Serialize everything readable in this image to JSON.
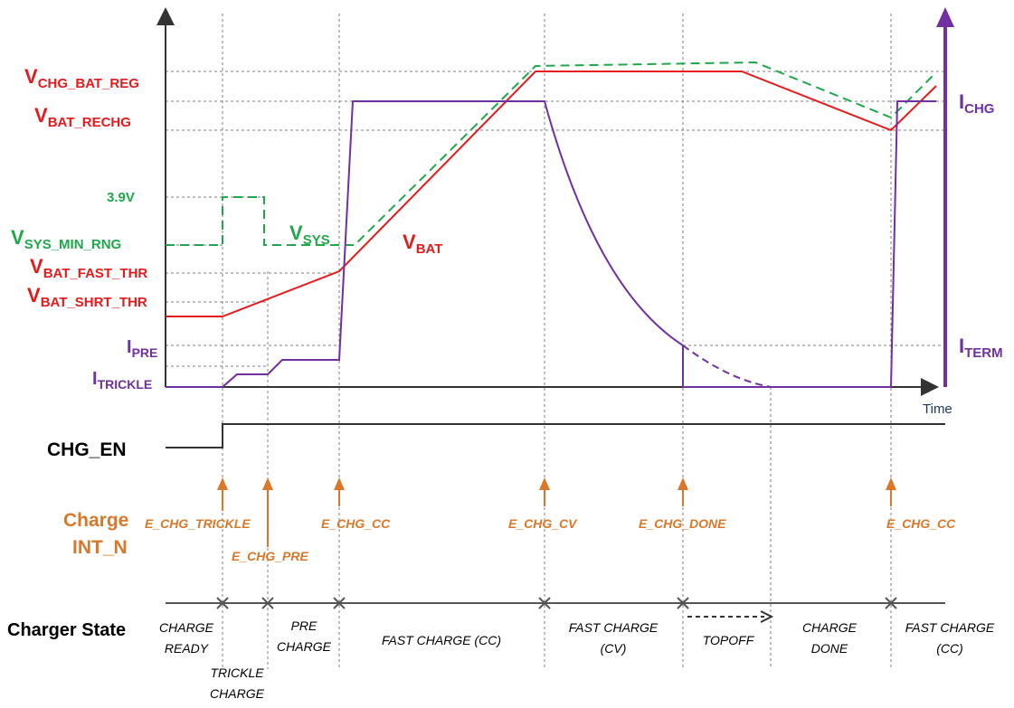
{
  "colors": {
    "vbat": "#e41a1c",
    "vsys": "#1fa84a",
    "ichg": "#7030a0",
    "event": "#d9782a",
    "axis": "#333333",
    "guide": "#7f7f7f"
  },
  "axis": {
    "time_label": "Time"
  },
  "left_labels": {
    "vchg_bat_reg": {
      "main": "V",
      "sub": "CHG_BAT_REG"
    },
    "vbat_rechg": {
      "main": "V",
      "sub": "BAT_RECHG"
    },
    "v39": "3.9V",
    "vsys_min_rng": {
      "main": "V",
      "sub": "SYS_MIN_RNG"
    },
    "vbat_fast_thr": {
      "main": "V",
      "sub": "BAT_FAST_THR"
    },
    "vbat_shrt_thr": {
      "main": "V",
      "sub": "BAT_SHRT_THR"
    },
    "ipre": {
      "main": "I",
      "sub": "PRE"
    },
    "itrickle": {
      "main": "I",
      "sub": "TRICKLE"
    }
  },
  "curve_labels": {
    "vsys": {
      "main": "V",
      "sub": "SYS"
    },
    "vbat": {
      "main": "V",
      "sub": "BAT"
    }
  },
  "right_labels": {
    "ichg": {
      "main": "I",
      "sub": "CHG"
    },
    "iterm": {
      "main": "I",
      "sub": "TERM"
    }
  },
  "signals": {
    "chg_en": "CHG_EN",
    "charge_int_line1": "Charge",
    "charge_int_line2": "INT_N"
  },
  "events": [
    "E_CHG_TRICKLE",
    "E_CHG_PRE",
    "E_CHG_CC",
    "E_CHG_CV",
    "E_CHG_DONE",
    "E_CHG_CC"
  ],
  "charger_state": {
    "label": "Charger State",
    "states": [
      [
        "CHARGE",
        "READY"
      ],
      [
        "TRICKLE",
        "CHARGE"
      ],
      [
        "PRE",
        "CHARGE"
      ],
      [
        "FAST CHARGE (CC)"
      ],
      [
        "FAST CHARGE",
        "(CV)"
      ],
      [
        "TOPOFF"
      ],
      [
        "CHARGE",
        "DONE"
      ],
      [
        "FAST CHARGE",
        "(CC)"
      ]
    ]
  }
}
